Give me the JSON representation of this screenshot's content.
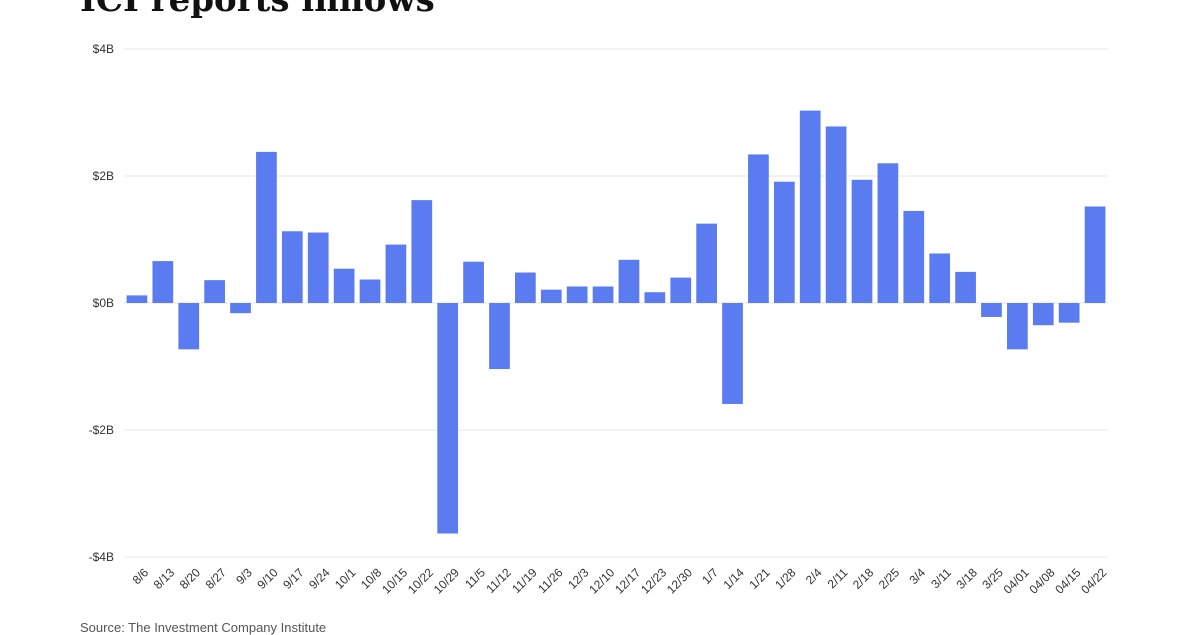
{
  "title": "ICI reports inflows",
  "source": "Source: The Investment Company Institute",
  "colors": {
    "bar": "#5b7cf0",
    "grid": "#e6e6e6",
    "text": "#333333",
    "background": "#ffffff"
  },
  "chart_data": {
    "type": "bar",
    "title": "ICI reports inflows",
    "xlabel": "",
    "ylabel": "",
    "ylim": [
      -4,
      4
    ],
    "yticks": [
      {
        "value": 4,
        "label": "$4B"
      },
      {
        "value": 2,
        "label": "$2B"
      },
      {
        "value": 0,
        "label": "$0B"
      },
      {
        "value": -2,
        "label": "-$2B"
      },
      {
        "value": -4,
        "label": "-$4B"
      }
    ],
    "grid": true,
    "legend": "none",
    "categories": [
      "8/6",
      "8/13",
      "8/20",
      "8/27",
      "9/3",
      "9/10",
      "9/17",
      "9/24",
      "10/1",
      "10/8",
      "10/15",
      "10/22",
      "10/29",
      "11/5",
      "11/12",
      "11/19",
      "11/26",
      "12/3",
      "12/10",
      "12/17",
      "12/23",
      "12/30",
      "1/7",
      "1/14",
      "1/21",
      "1/28",
      "2/4",
      "2/11",
      "2/18",
      "2/25",
      "3/4",
      "3/11",
      "3/18",
      "3/25",
      "04/01",
      "04/08",
      "04/15",
      "04/22"
    ],
    "values": [
      0.12,
      0.66,
      -0.73,
      0.36,
      -0.16,
      2.38,
      1.13,
      1.11,
      0.54,
      0.37,
      0.92,
      1.62,
      -3.63,
      0.65,
      -1.04,
      0.48,
      0.21,
      0.26,
      0.26,
      0.68,
      0.17,
      0.4,
      1.25,
      -1.59,
      2.34,
      1.91,
      3.03,
      2.78,
      1.94,
      2.2,
      1.45,
      0.78,
      0.49,
      -0.22,
      -0.73,
      -0.35,
      -0.31,
      1.52
    ]
  }
}
